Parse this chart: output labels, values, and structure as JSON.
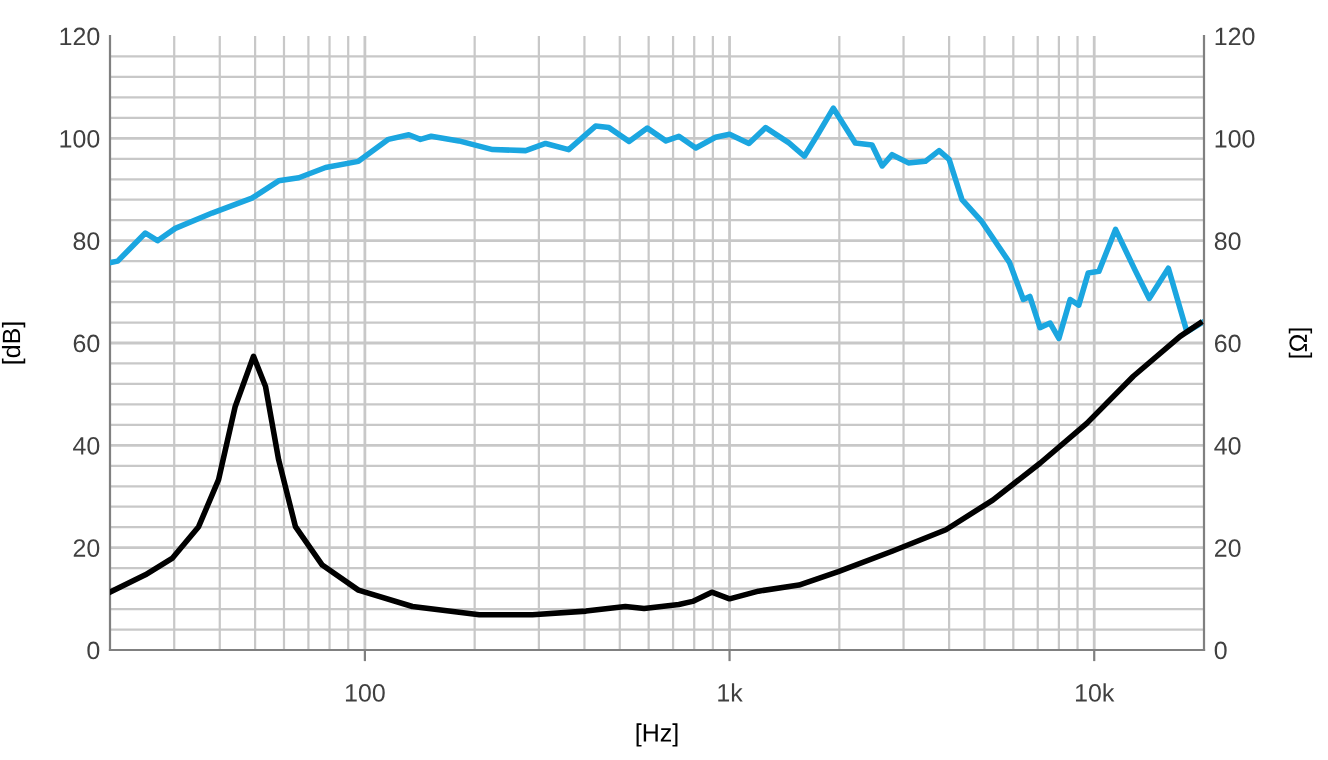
{
  "chart_data": {
    "type": "line",
    "xlabel": "[Hz]",
    "ylabel": "[dB]",
    "y2label": "[Ω]",
    "log": "x",
    "grid": true,
    "marker": "none",
    "line_style": "solid",
    "xlim": [
      20,
      20000
    ],
    "xticks": [
      {
        "value": 100,
        "label": "100"
      },
      {
        "value": 1000,
        "label": "1k"
      },
      {
        "value": 10000,
        "label": "10k"
      }
    ],
    "ylim": [
      0,
      120
    ],
    "yticks": [
      0,
      20,
      40,
      60,
      80,
      100,
      120
    ],
    "y2lim": [
      0,
      120
    ],
    "y2ticks": [
      0,
      20,
      40,
      60,
      80,
      100,
      120
    ],
    "series": [
      {
        "color": "#1ba6e0",
        "x": [
          20,
          21,
          25,
          27,
          30.2,
          38.1,
          49,
          58,
          65.9,
          78,
          96,
          116,
          132,
          142,
          152,
          181,
          224,
          276,
          313,
          362,
          429,
          467,
          530,
          595,
          669,
          726,
          808,
          915,
          1000,
          1130,
          1256,
          1455,
          1604,
          1757,
          1926,
          2212,
          2459,
          2622,
          2791,
          3093,
          3443,
          3755,
          4000,
          4340,
          4920,
          5860,
          6390,
          6660,
          7100,
          7570,
          8000,
          8590,
          9070,
          9630,
          10300,
          11440,
          12930,
          14150,
          15970,
          17950,
          20000
        ],
        "values": [
          75.7,
          76,
          81.5,
          80,
          82.4,
          85.4,
          88.3,
          91.7,
          92.3,
          94.3,
          95.5,
          99.8,
          100.7,
          99.8,
          100.4,
          99.5,
          97.8,
          97.6,
          99,
          97.8,
          102.4,
          102.1,
          99.4,
          102,
          99.5,
          100.4,
          98.1,
          100.2,
          100.8,
          99,
          102.1,
          99.1,
          96.5,
          101.1,
          105.9,
          99.1,
          98.7,
          94.6,
          96.8,
          95.2,
          95.5,
          97.6,
          95.9,
          88,
          83.7,
          75.7,
          68.5,
          69.1,
          63,
          63.9,
          60.9,
          68.5,
          67.4,
          73.7,
          74,
          82.2,
          74.3,
          68.7,
          74.6,
          62.2,
          64.2
        ]
      },
      {
        "color": "#000000",
        "axis": "y2",
        "x": [
          20,
          25,
          29.6,
          35,
          39.7,
          44.1,
          49.5,
          53.4,
          58,
          64.5,
          76.4,
          96,
          135,
          206,
          288,
          404,
          518,
          583,
          726,
          792,
          894,
          1000,
          1200,
          1550,
          1987,
          2791,
          3920,
          5270,
          7100,
          9540,
          12800,
          17200,
          19500
        ],
        "values": [
          11.3,
          14.7,
          17.9,
          24.1,
          33.3,
          47.6,
          57.4,
          51.5,
          37.2,
          24.1,
          16.6,
          11.7,
          8.5,
          6.9,
          6.9,
          7.6,
          8.5,
          8.1,
          8.9,
          9.5,
          11.3,
          10.0,
          11.5,
          12.7,
          15.3,
          19.3,
          23.5,
          29.3,
          36.5,
          44.3,
          53.5,
          61.3,
          63.9
        ]
      }
    ]
  }
}
